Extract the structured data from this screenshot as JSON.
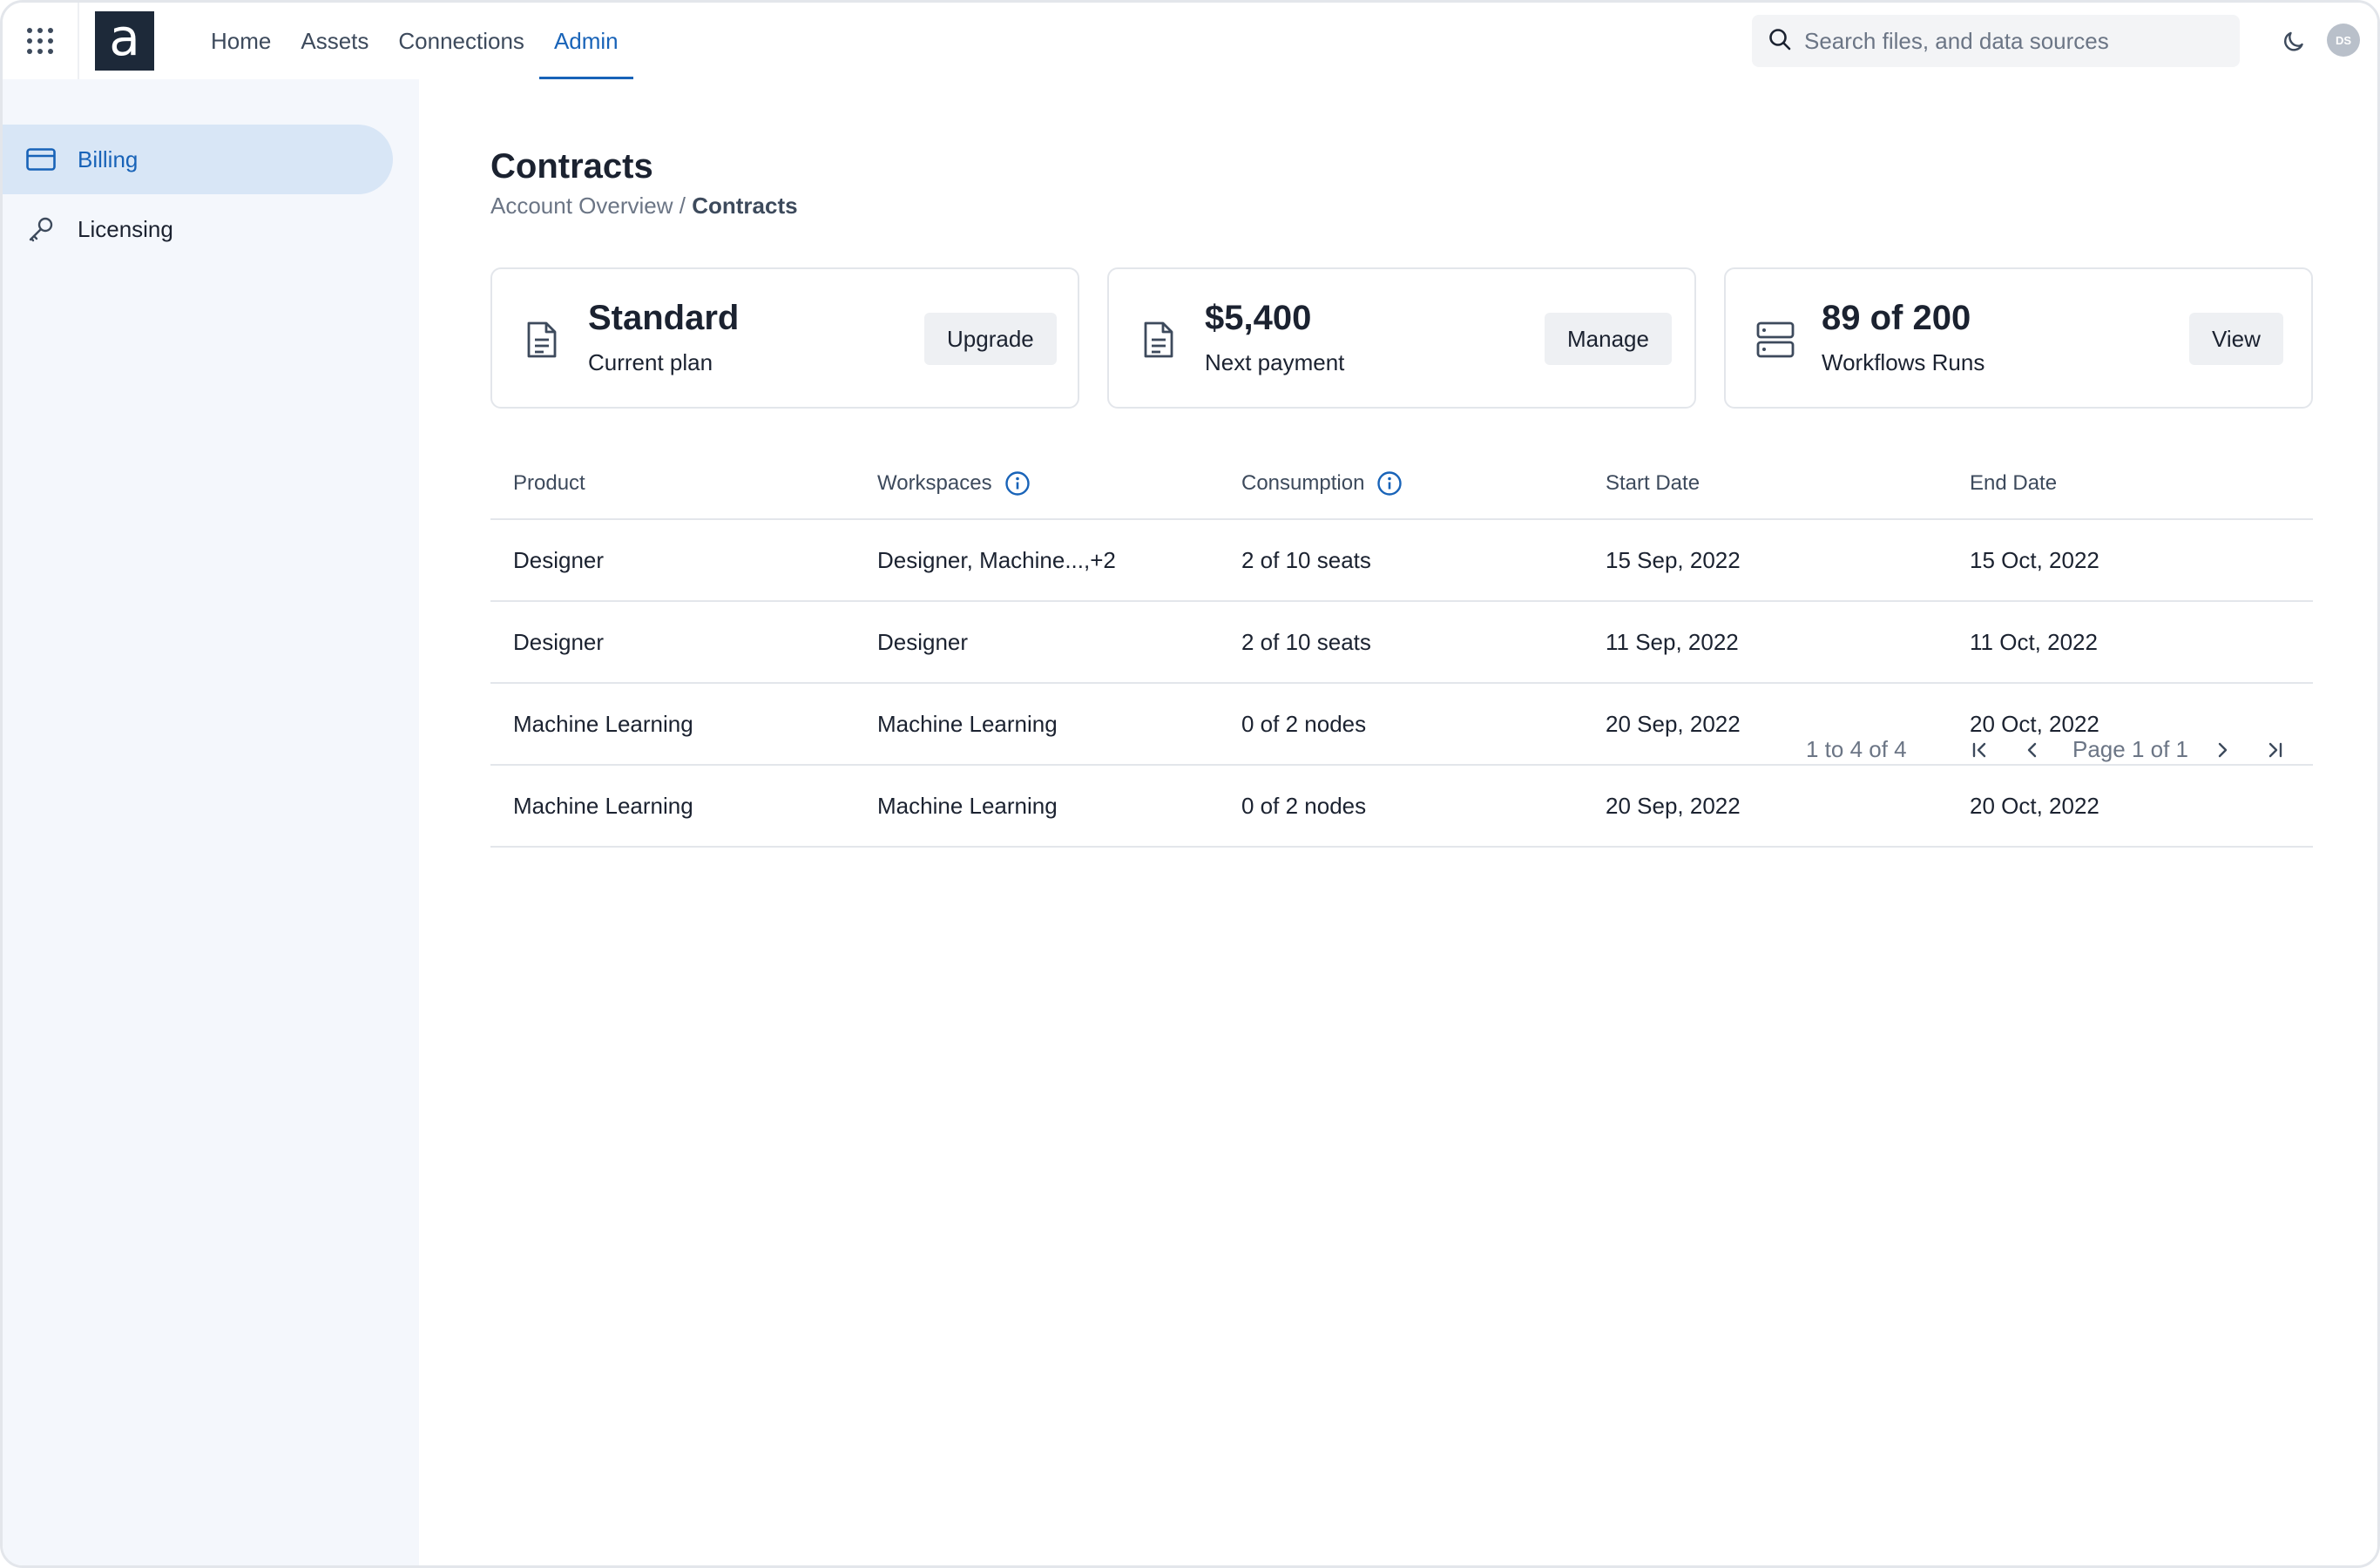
{
  "header": {
    "logo_letter": "a",
    "nav": [
      "Home",
      "Assets",
      "Connections",
      "Admin"
    ],
    "active_nav": "Admin",
    "search_placeholder": "Search files, and data sources",
    "avatar_initials": "DS"
  },
  "sidebar": {
    "items": [
      {
        "label": "Billing",
        "icon": "credit-card-icon",
        "active": true
      },
      {
        "label": "Licensing",
        "icon": "key-icon",
        "active": false
      }
    ]
  },
  "page": {
    "title": "Contracts",
    "breadcrumb": {
      "parent": "Account Overview",
      "separator": " / ",
      "current": "Contracts"
    }
  },
  "cards": [
    {
      "value": "Standard",
      "label": "Current plan",
      "button": "Upgrade",
      "icon": "document-icon"
    },
    {
      "value": "$5,400",
      "label": "Next payment",
      "button": "Manage",
      "icon": "document-icon"
    },
    {
      "value": "89 of 200",
      "label": "Workflows Runs",
      "button": "View",
      "icon": "server-icon"
    }
  ],
  "table": {
    "columns": [
      "Product",
      "Workspaces",
      "Consumption",
      "Start Date",
      "End Date"
    ],
    "rows": [
      [
        "Designer",
        "Designer, Machine...,+2",
        "2 of 10 seats",
        "15 Sep, 2022",
        "15 Oct, 2022"
      ],
      [
        "Designer",
        "Designer",
        "2 of 10 seats",
        "11 Sep, 2022",
        "11 Oct, 2022"
      ],
      [
        "Machine Learning",
        "Machine Learning",
        "0 of 2 nodes",
        "20 Sep, 2022",
        "20 Oct, 2022"
      ],
      [
        "Machine Learning",
        "Machine Learning",
        "0 of 2 nodes",
        "20 Sep, 2022",
        "20 Oct, 2022"
      ]
    ]
  },
  "pagination": {
    "range": "1 to 4 of 4",
    "page_info": "Page 1 of 1"
  },
  "colors": {
    "accent": "#1863b8",
    "sidebar_bg": "#f4f7fc",
    "sidebar_active_bg": "#d8e6f6",
    "logo_bg": "#1d2939"
  }
}
